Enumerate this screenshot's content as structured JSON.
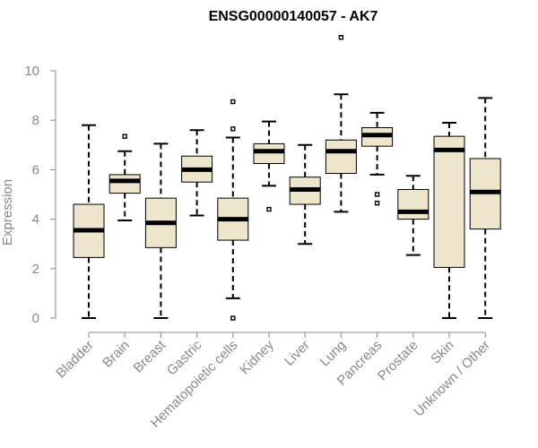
{
  "chart_data": {
    "type": "boxplot",
    "title": "ENSG00000140057 - AK7",
    "xlabel": "",
    "ylabel": "Expression",
    "ylim": [
      0,
      10
    ],
    "yticks": [
      0,
      2,
      4,
      6,
      8,
      10
    ],
    "grid": false,
    "series": [
      {
        "name": "Bladder",
        "min": 0.0,
        "q1": 2.45,
        "median": 3.55,
        "q3": 4.6,
        "max": 7.8,
        "outliers": []
      },
      {
        "name": "Brain",
        "min": 3.95,
        "q1": 5.05,
        "median": 5.55,
        "q3": 5.8,
        "max": 6.75,
        "outliers": [
          7.35
        ]
      },
      {
        "name": "Breast",
        "min": 0.0,
        "q1": 2.85,
        "median": 3.85,
        "q3": 4.85,
        "max": 7.05,
        "outliers": []
      },
      {
        "name": "Gastric",
        "min": 4.15,
        "q1": 5.5,
        "median": 6.0,
        "q3": 6.55,
        "max": 7.6,
        "outliers": []
      },
      {
        "name": "Hematopoietic cells",
        "min": 0.8,
        "q1": 3.15,
        "median": 4.0,
        "q3": 4.85,
        "max": 7.3,
        "outliers": [
          0.0,
          7.65,
          8.75
        ]
      },
      {
        "name": "Kidney",
        "min": 5.35,
        "q1": 6.25,
        "median": 6.75,
        "q3": 7.05,
        "max": 7.95,
        "outliers": [
          4.4
        ]
      },
      {
        "name": "Liver",
        "min": 3.0,
        "q1": 4.6,
        "median": 5.2,
        "q3": 5.7,
        "max": 7.0,
        "outliers": []
      },
      {
        "name": "Lung",
        "min": 4.3,
        "q1": 5.85,
        "median": 6.75,
        "q3": 7.2,
        "max": 9.05,
        "outliers": [
          11.35
        ]
      },
      {
        "name": "Pancreas",
        "min": 5.8,
        "q1": 6.95,
        "median": 7.4,
        "q3": 7.7,
        "max": 8.3,
        "outliers": [
          5.0,
          4.65
        ]
      },
      {
        "name": "Prostate",
        "min": 2.55,
        "q1": 4.0,
        "median": 4.3,
        "q3": 5.2,
        "max": 5.75,
        "outliers": []
      },
      {
        "name": "Skin",
        "min": 0.0,
        "q1": 2.05,
        "median": 6.8,
        "q3": 7.35,
        "max": 7.9,
        "outliers": []
      },
      {
        "name": "Unknown / Other",
        "min": 0.0,
        "q1": 3.6,
        "median": 5.1,
        "q3": 6.45,
        "max": 8.9,
        "outliers": []
      }
    ]
  }
}
